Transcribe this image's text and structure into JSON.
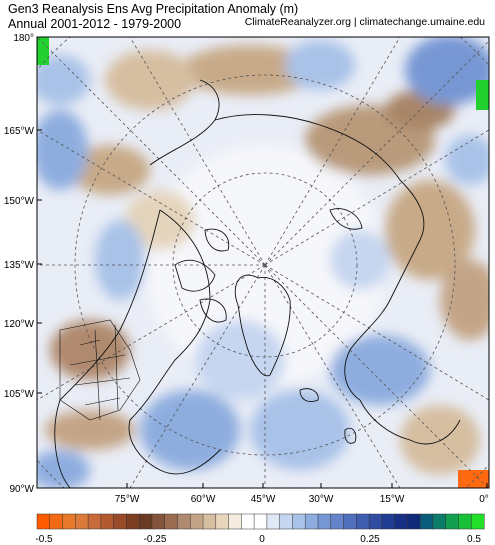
{
  "title": {
    "line1": "Gen3 Reanalysis Ens Avg Precipitation Anomaly (m)",
    "line2": "Annual 2001-2012 - 1979-2000"
  },
  "source": "ClimateReanalyzer.org | climatechange.umaine.edu",
  "map": {
    "projection": "north-polar-stereographic",
    "left_labels": [
      "180°",
      "165°W",
      "150°W",
      "135°W",
      "120°W",
      "105°W",
      "90°W"
    ],
    "bottom_labels": [
      "75°W",
      "60°W",
      "45°W",
      "30°W",
      "15°W",
      "0°"
    ]
  },
  "colorbar": {
    "tick_labels": [
      "-0.5",
      "-0.25",
      "0",
      "0.25",
      "0.5"
    ],
    "colors": [
      "#ff5a00",
      "#f36a14",
      "#e8782a",
      "#db7a3a",
      "#c96a3a",
      "#b35a32",
      "#9a4c2a",
      "#7c3f24",
      "#6a3a22",
      "#84553a",
      "#9a6c52",
      "#b08a6e",
      "#c4a486",
      "#d6bea0",
      "#e8d6bc",
      "#f4ecdf",
      "#ffffff",
      "#ffffff",
      "#dfe8f6",
      "#c6d6f0",
      "#a9c2e8",
      "#8eaddf",
      "#7797d4",
      "#6484c9",
      "#5171bd",
      "#3f5eb0",
      "#2f4ca2",
      "#223d94",
      "#173085",
      "#0e2a78",
      "#0a5c7a",
      "#0b7c6a",
      "#12a050",
      "#19c03a",
      "#22e02a"
    ]
  }
}
